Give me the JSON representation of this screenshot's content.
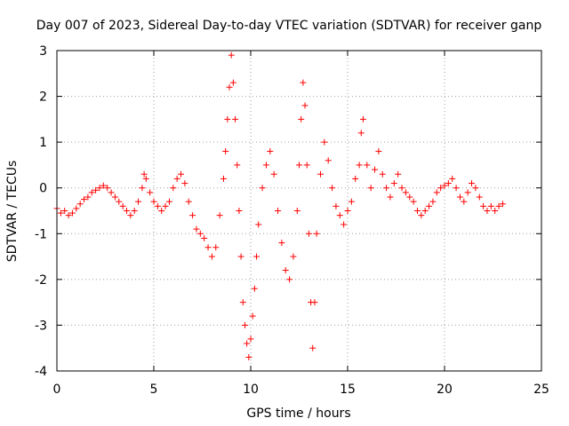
{
  "chart_data": {
    "type": "scatter",
    "title": "Day 007 of 2023, Sidereal Day-to-day VTEC variation (SDTVAR) for receiver ganp",
    "xlabel": "GPS time / hours",
    "ylabel": "SDTVAR / TECUs",
    "xlim": [
      0,
      25
    ],
    "ylim": [
      -4,
      3
    ],
    "xticks": [
      0,
      5,
      10,
      15,
      20,
      25
    ],
    "yticks": [
      -4,
      -3,
      -2,
      -1,
      0,
      1,
      2,
      3
    ],
    "xtick_labels": [
      "0",
      "5",
      "10",
      "15",
      "20",
      "25"
    ],
    "ytick_labels": [
      "-4",
      "-3",
      "-2",
      "-1",
      "0",
      "1",
      "2",
      "3"
    ],
    "grid": true,
    "marker": "+",
    "series": [
      {
        "name": "SDTVAR",
        "color": "#ff0000",
        "points": [
          [
            0.0,
            -0.45
          ],
          [
            0.2,
            -0.55
          ],
          [
            0.4,
            -0.5
          ],
          [
            0.6,
            -0.6
          ],
          [
            0.8,
            -0.55
          ],
          [
            1.0,
            -0.45
          ],
          [
            1.2,
            -0.35
          ],
          [
            1.4,
            -0.25
          ],
          [
            1.6,
            -0.2
          ],
          [
            1.8,
            -0.1
          ],
          [
            2.0,
            -0.05
          ],
          [
            2.2,
            0.0
          ],
          [
            2.4,
            0.05
          ],
          [
            2.6,
            0.0
          ],
          [
            2.8,
            -0.1
          ],
          [
            3.0,
            -0.2
          ],
          [
            3.2,
            -0.3
          ],
          [
            3.4,
            -0.4
          ],
          [
            3.6,
            -0.5
          ],
          [
            3.8,
            -0.6
          ],
          [
            4.0,
            -0.5
          ],
          [
            4.2,
            -0.3
          ],
          [
            4.4,
            0.0
          ],
          [
            4.5,
            0.3
          ],
          [
            4.6,
            0.2
          ],
          [
            4.8,
            -0.1
          ],
          [
            5.0,
            -0.3
          ],
          [
            5.2,
            -0.4
          ],
          [
            5.4,
            -0.5
          ],
          [
            5.6,
            -0.4
          ],
          [
            5.8,
            -0.3
          ],
          [
            6.0,
            0.0
          ],
          [
            6.2,
            0.2
          ],
          [
            6.4,
            0.3
          ],
          [
            6.6,
            0.1
          ],
          [
            6.8,
            -0.3
          ],
          [
            7.0,
            -0.6
          ],
          [
            7.2,
            -0.9
          ],
          [
            7.4,
            -1.0
          ],
          [
            7.6,
            -1.1
          ],
          [
            7.8,
            -1.3
          ],
          [
            8.0,
            -1.5
          ],
          [
            8.2,
            -1.3
          ],
          [
            8.4,
            -0.6
          ],
          [
            8.6,
            0.2
          ],
          [
            8.7,
            0.8
          ],
          [
            8.8,
            1.5
          ],
          [
            8.9,
            2.2
          ],
          [
            9.0,
            2.9
          ],
          [
            9.1,
            2.3
          ],
          [
            9.2,
            1.5
          ],
          [
            9.3,
            0.5
          ],
          [
            9.4,
            -0.5
          ],
          [
            9.5,
            -1.5
          ],
          [
            9.6,
            -2.5
          ],
          [
            9.7,
            -3.0
          ],
          [
            9.8,
            -3.4
          ],
          [
            9.9,
            -3.7
          ],
          [
            10.0,
            -3.3
          ],
          [
            10.1,
            -2.8
          ],
          [
            10.2,
            -2.2
          ],
          [
            10.3,
            -1.5
          ],
          [
            10.4,
            -0.8
          ],
          [
            10.6,
            0.0
          ],
          [
            10.8,
            0.5
          ],
          [
            11.0,
            0.8
          ],
          [
            11.2,
            0.3
          ],
          [
            11.4,
            -0.5
          ],
          [
            11.6,
            -1.2
          ],
          [
            11.8,
            -1.8
          ],
          [
            12.0,
            -2.0
          ],
          [
            12.2,
            -1.5
          ],
          [
            12.4,
            -0.5
          ],
          [
            12.5,
            0.5
          ],
          [
            12.6,
            1.5
          ],
          [
            12.7,
            2.3
          ],
          [
            12.8,
            1.8
          ],
          [
            12.9,
            0.5
          ],
          [
            13.0,
            -1.0
          ],
          [
            13.1,
            -2.5
          ],
          [
            13.2,
            -3.5
          ],
          [
            13.3,
            -2.5
          ],
          [
            13.4,
            -1.0
          ],
          [
            13.6,
            0.3
          ],
          [
            13.8,
            1.0
          ],
          [
            14.0,
            0.6
          ],
          [
            14.2,
            0.0
          ],
          [
            14.4,
            -0.4
          ],
          [
            14.6,
            -0.6
          ],
          [
            14.8,
            -0.8
          ],
          [
            15.0,
            -0.5
          ],
          [
            15.2,
            -0.3
          ],
          [
            15.4,
            0.2
          ],
          [
            15.6,
            0.5
          ],
          [
            15.7,
            1.2
          ],
          [
            15.8,
            1.5
          ],
          [
            16.0,
            0.5
          ],
          [
            16.2,
            0.0
          ],
          [
            16.4,
            0.4
          ],
          [
            16.6,
            0.8
          ],
          [
            16.8,
            0.3
          ],
          [
            17.0,
            0.0
          ],
          [
            17.2,
            -0.2
          ],
          [
            17.4,
            0.1
          ],
          [
            17.6,
            0.3
          ],
          [
            17.8,
            0.0
          ],
          [
            18.0,
            -0.1
          ],
          [
            18.2,
            -0.2
          ],
          [
            18.4,
            -0.3
          ],
          [
            18.6,
            -0.5
          ],
          [
            18.8,
            -0.6
          ],
          [
            19.0,
            -0.5
          ],
          [
            19.2,
            -0.4
          ],
          [
            19.4,
            -0.3
          ],
          [
            19.6,
            -0.1
          ],
          [
            19.8,
            0.0
          ],
          [
            20.0,
            0.05
          ],
          [
            20.2,
            0.1
          ],
          [
            20.4,
            0.2
          ],
          [
            20.6,
            0.0
          ],
          [
            20.8,
            -0.2
          ],
          [
            21.0,
            -0.3
          ],
          [
            21.2,
            -0.1
          ],
          [
            21.4,
            0.1
          ],
          [
            21.6,
            0.0
          ],
          [
            21.8,
            -0.2
          ],
          [
            22.0,
            -0.4
          ],
          [
            22.2,
            -0.5
          ],
          [
            22.4,
            -0.4
          ],
          [
            22.6,
            -0.5
          ],
          [
            22.8,
            -0.4
          ],
          [
            23.0,
            -0.35
          ]
        ]
      }
    ]
  }
}
